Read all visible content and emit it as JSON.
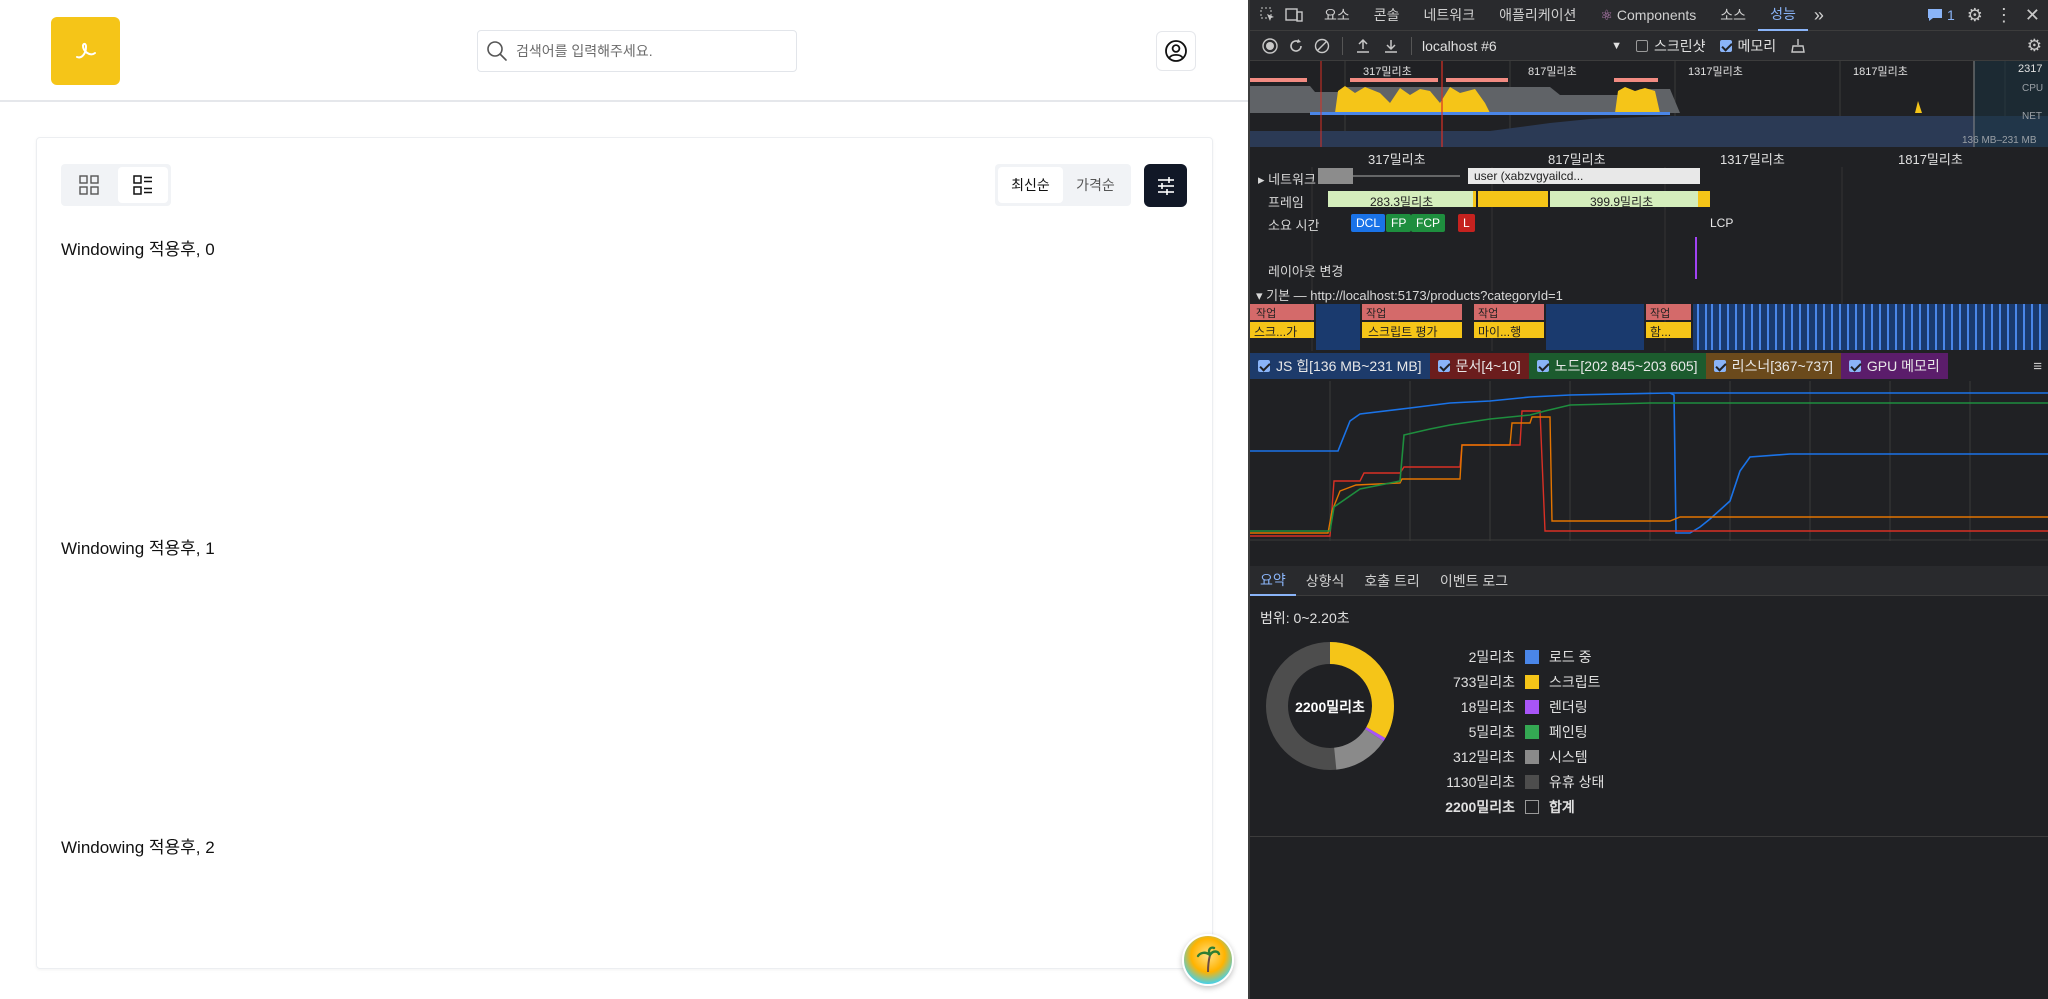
{
  "app": {
    "search_placeholder": "검색어를 입력해주세요.",
    "sort": {
      "latest": "최신순",
      "price": "가격순"
    },
    "items": [
      "Windowing 적용후, 0",
      "Windowing 적용후, 1",
      "Windowing 적용후, 2"
    ]
  },
  "devtools": {
    "tabs": [
      "요소",
      "콘솔",
      "네트워크",
      "애플리케이션",
      "Components",
      "소스",
      "성능"
    ],
    "active_tab": "성능",
    "issues_count": "1",
    "target": "localhost #6",
    "screenshot_label": "스크린샷",
    "memory_label": "메모리",
    "overview": {
      "ticks": [
        "317밀리초",
        "817밀리초",
        "1317밀리초",
        "1817밀리초",
        "2317"
      ],
      "cpu_label": "CPU",
      "net_label": "NET",
      "heap_range": "136 MB–231 MB"
    },
    "ruler": [
      "317밀리초",
      "817밀리초",
      "1317밀리초",
      "1817밀리초"
    ],
    "tracks": {
      "network": "네트워크",
      "network_request": "user (xabzvgyailcd...",
      "frames": "프레임",
      "frame_1": "283.3밀리초",
      "frame_2": "399.9밀리초",
      "timings": "소요 시간",
      "dcl": "DCL",
      "fp": "FP",
      "fcp": "FCP",
      "l": "L",
      "lcp": "LCP",
      "layout_shifts": "레이아웃 변경",
      "main": "기본 — http://localhost:5173/products?categoryId=1",
      "task": "작업",
      "script_1": "스크...가",
      "script_2": "스크립트 평가",
      "script_3": "마이...행",
      "script_4": "함..."
    },
    "memory_legend": [
      {
        "label": "JS 힙[136 MB~231 MB]",
        "color": "#1a73e8"
      },
      {
        "label": "문서[4~10]",
        "color": "#d93025"
      },
      {
        "label": "노드[202 845~203 605]",
        "color": "#1e8e3e"
      },
      {
        "label": "리스너[367~737]",
        "color": "#e37400"
      },
      {
        "label": "GPU 메모리",
        "color": "#a142f4"
      }
    ],
    "bottom_tabs": [
      "요약",
      "상향식",
      "호출 트리",
      "이벤트 로그"
    ],
    "summary": {
      "range": "범위: 0~2.20초",
      "total": "2200밀리초",
      "rows": [
        {
          "value": "2밀리초",
          "label": "로드 중",
          "color": "#4a86e8"
        },
        {
          "value": "733밀리초",
          "label": "스크립트",
          "color": "#f5c518"
        },
        {
          "value": "18밀리초",
          "label": "렌더링",
          "color": "#a855f7"
        },
        {
          "value": "5밀리초",
          "label": "페인팅",
          "color": "#34a853"
        },
        {
          "value": "312밀리초",
          "label": "시스템",
          "color": "#8a8a8a"
        },
        {
          "value": "1130밀리초",
          "label": "유휴 상태",
          "color": "#4d4d4d"
        },
        {
          "value": "2200밀리초",
          "label": "합계",
          "color": "transparent"
        }
      ]
    }
  }
}
